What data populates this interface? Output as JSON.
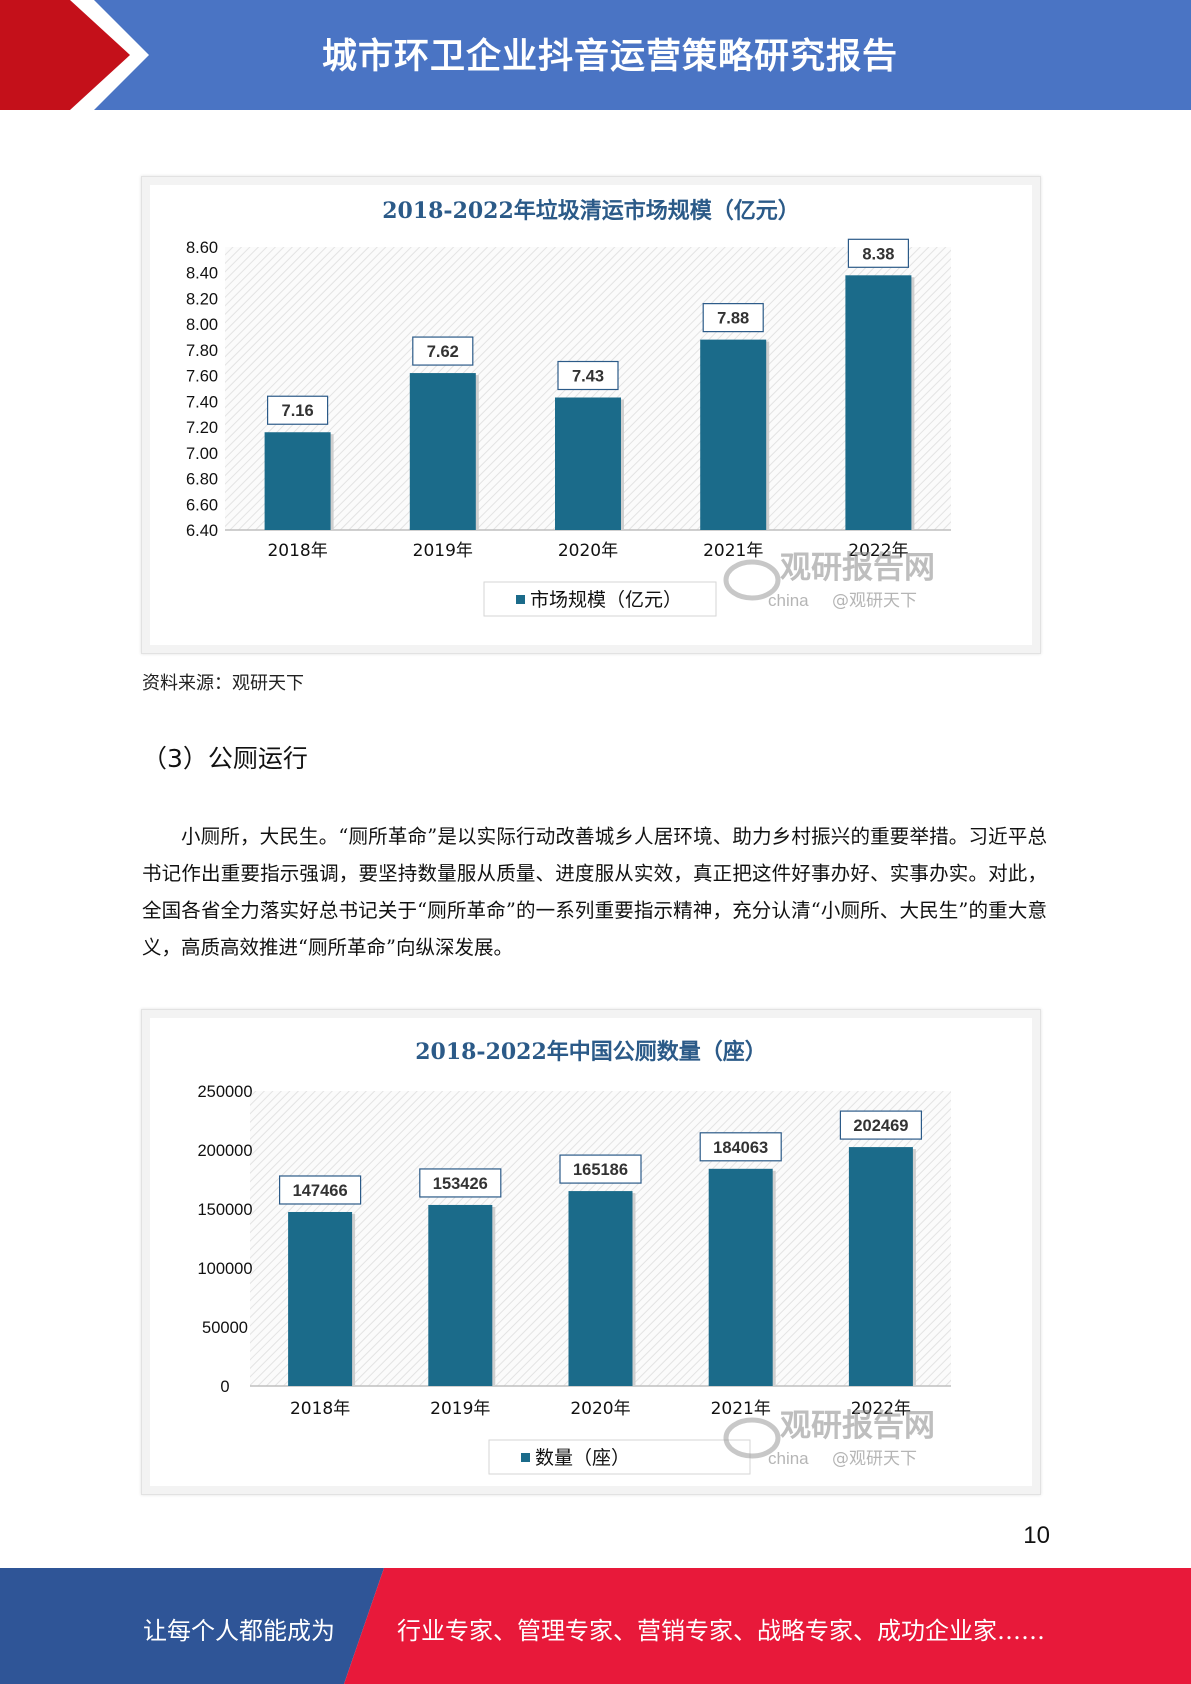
{
  "header": {
    "title": "城市环卫企业抖音运营策略研究报告",
    "color_bar": "#4a74c4",
    "color_arrow": "#c4101a"
  },
  "chart_data": [
    {
      "type": "bar",
      "title": "2018-2022年垃圾清运市场规模（亿元）",
      "categories": [
        "2018年",
        "2019年",
        "2020年",
        "2021年",
        "2022年"
      ],
      "series": [
        {
          "name": "市场规模（亿元）",
          "values": [
            7.16,
            7.62,
            7.43,
            7.88,
            8.38
          ],
          "color": "#1b6b8a"
        }
      ],
      "data_labels": [
        "7.16",
        "7.62",
        "7.43",
        "7.88",
        "8.38"
      ],
      "ylim": [
        6.4,
        8.6
      ],
      "yticks": [
        "8.60",
        "8.40",
        "8.20",
        "8.00",
        "7.80",
        "7.60",
        "7.40",
        "7.20",
        "7.00",
        "6.80",
        "6.60",
        "6.40"
      ],
      "legend_position": "bottom",
      "grid": false,
      "watermark": {
        "brand": "观研报告网",
        "sub": "china",
        "handle": "@观研天下"
      }
    },
    {
      "type": "bar",
      "title": "2018-2022年中国公厕数量（座）",
      "categories": [
        "2018年",
        "2019年",
        "2020年",
        "2021年",
        "2022年"
      ],
      "series": [
        {
          "name": "数量（座）",
          "values": [
            147466,
            153426,
            165186,
            184063,
            202469
          ],
          "color": "#1b6b8a"
        }
      ],
      "data_labels": [
        "147466",
        "153426",
        "165186",
        "184063",
        "202469"
      ],
      "ylim": [
        0,
        250000
      ],
      "yticks": [
        "250000",
        "200000",
        "150000",
        "100000",
        "50000",
        "0"
      ],
      "legend_position": "bottom",
      "grid": false,
      "watermark": {
        "brand": "观研报告网",
        "sub": "china",
        "handle": "@观研天下"
      }
    }
  ],
  "body": {
    "source": "资料来源：观研天下",
    "section_heading": "（3）公厕运行",
    "paragraph": "小厕所，大民生。“厕所革命”是以实际行动改善城乡人居环境、助力乡村振兴的重要举措。习近平总书记作出重要指示强调，要坚持数量服从质量、进度服从实效，真正把这件好事办好、实事办实。对此，全国各省全力落实好总书记关于“厕所革命”的一系列重要指示精神，充分认清“小厕所、大民生”的重大意义，高质高效推进“厕所革命”向纵深发展。",
    "page_number": "10"
  },
  "footer": {
    "left_text": "让每个人都能成为",
    "right_text": "行业专家、管理专家、营销专家、战略专家、成功企业家……",
    "color_left": "#2f5597",
    "color_right": "#e8193a"
  }
}
